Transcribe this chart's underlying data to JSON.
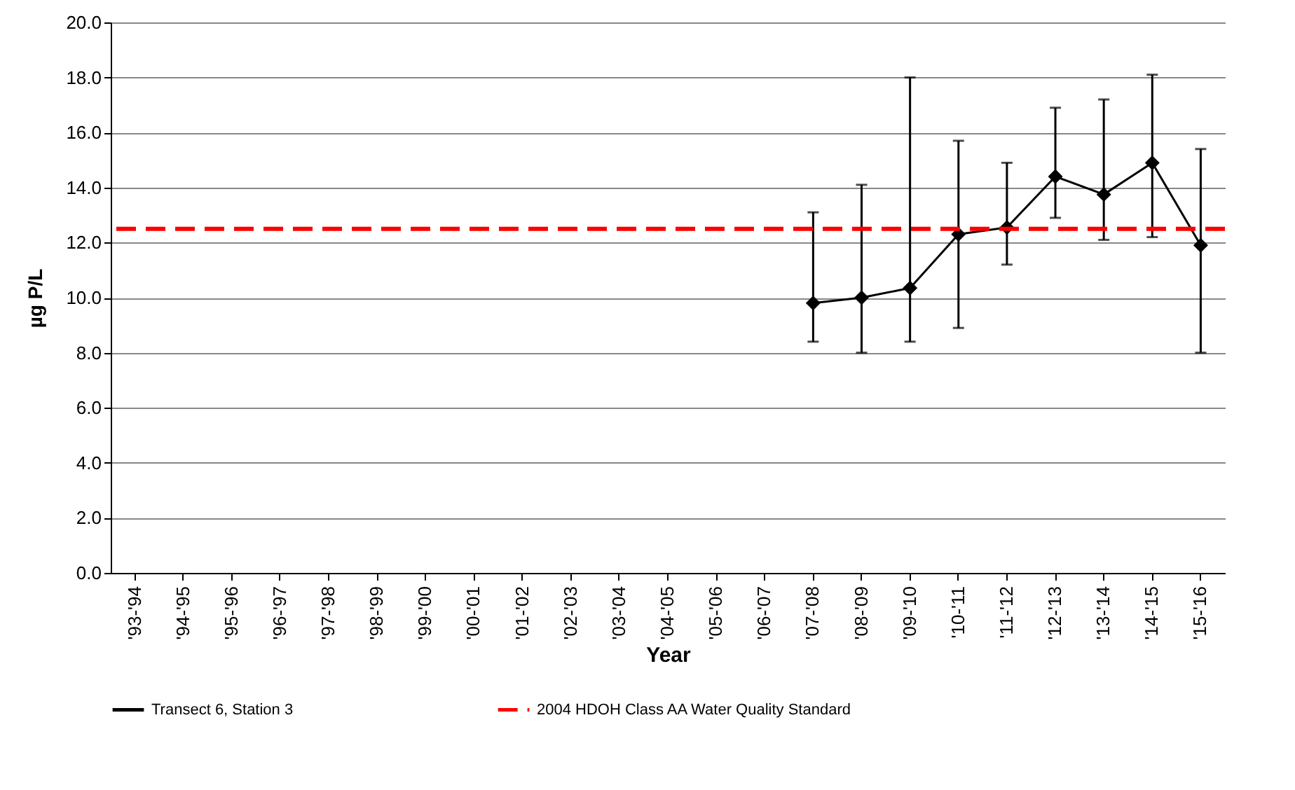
{
  "chart_data": {
    "type": "line",
    "xlabel": "Year",
    "ylabel": "µg P/L",
    "categories": [
      "'93-'94",
      "'94-'95",
      "'95-'96",
      "'96-'97",
      "'97-'98",
      "'98-'99",
      "'99-'00",
      "'00-'01",
      "'01-'02",
      "'02-'03",
      "'03-'04",
      "'04-'05",
      "'05-'06",
      "'06-'07",
      "'07-'08",
      "'08-'09",
      "'09-'10",
      "'10-'11",
      "'11-'12",
      "'12-'13",
      "'13-'14",
      "'14-'15",
      "'15-'16"
    ],
    "series": [
      {
        "name": "Transect 6, Station 3",
        "color": "#000000",
        "values": [
          null,
          null,
          null,
          null,
          null,
          null,
          null,
          null,
          null,
          null,
          null,
          null,
          null,
          null,
          9.8,
          10.0,
          10.35,
          12.3,
          12.55,
          14.4,
          13.75,
          14.9,
          11.9
        ],
        "errors": [
          null,
          null,
          null,
          null,
          null,
          null,
          null,
          null,
          null,
          null,
          null,
          null,
          null,
          null,
          [
            8.4,
            13.1
          ],
          [
            8.0,
            14.1
          ],
          [
            8.4,
            18.0
          ],
          [
            8.9,
            15.7
          ],
          [
            11.2,
            14.9
          ],
          [
            12.9,
            16.9
          ],
          [
            12.1,
            17.2
          ],
          [
            12.2,
            18.1
          ],
          [
            8.0,
            15.4
          ]
        ]
      }
    ],
    "ylim": [
      0,
      20
    ],
    "yticks": [
      {
        "value": 0,
        "label": "0.0"
      },
      {
        "value": 2,
        "label": "2.0"
      },
      {
        "value": 4,
        "label": "4.0"
      },
      {
        "value": 6,
        "label": "6.0"
      },
      {
        "value": 8,
        "label": "8.0"
      },
      {
        "value": 10,
        "label": "10.0"
      },
      {
        "value": 12,
        "label": "12.0"
      },
      {
        "value": 14,
        "label": "14.0"
      },
      {
        "value": 16,
        "label": "16.0"
      },
      {
        "value": 18,
        "label": "18.0"
      },
      {
        "value": 20,
        "label": "20.0"
      }
    ],
    "ref_lines": [
      {
        "axis": "y",
        "value": 12.5,
        "label": "2004 HDOH Class AA Water Quality Standard",
        "color": "#ff0000",
        "line_style": "dashed"
      }
    ],
    "grid": "y",
    "legend": "bottom",
    "marker": "diamond",
    "line_style": "solid"
  }
}
